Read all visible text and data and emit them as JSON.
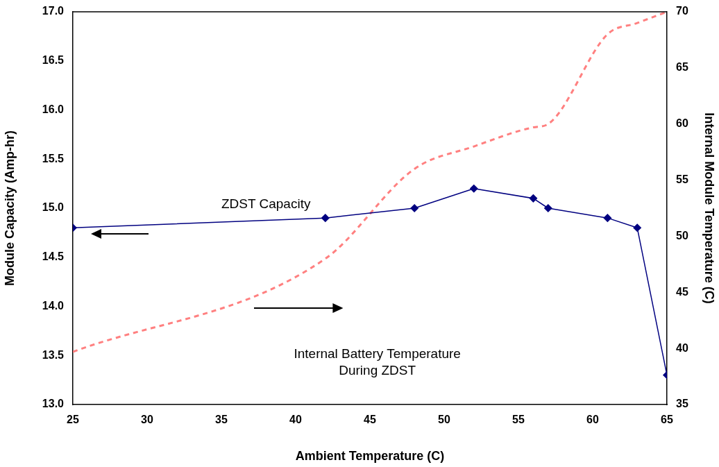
{
  "chart_data": {
    "type": "line",
    "xlabel": "Ambient Temperature (C)",
    "ylabel": "Module Capacity (Amp-hr)",
    "y2label": "Internal Module Temperature (C)",
    "x": [
      25,
      42,
      48,
      52,
      56,
      57,
      61,
      63,
      65
    ],
    "series": [
      {
        "color": "#000080",
        "values": [
          14.8,
          14.9,
          15.0,
          15.2,
          15.1,
          15.0,
          14.9,
          14.8,
          13.3
        ],
        "marker": "diamond",
        "line_style": "solid"
      },
      {
        "color": "#ff8080",
        "axis": "y2",
        "values": [
          39.7,
          48,
          56,
          58,
          59.7,
          60,
          68,
          69,
          70
        ],
        "marker": "none",
        "line_style": "dashed"
      }
    ],
    "xlim": [
      25,
      65
    ],
    "xticks": [
      25,
      30,
      35,
      40,
      45,
      50,
      55,
      60,
      65
    ],
    "ylim": [
      13,
      17
    ],
    "yticks": [
      {
        "value": 13,
        "label": "13.0"
      },
      {
        "value": 13.5,
        "label": "13.5"
      },
      {
        "value": 14,
        "label": "14.0"
      },
      {
        "value": 14.5,
        "label": "14.5"
      },
      {
        "value": 15,
        "label": "15.0"
      },
      {
        "value": 15.5,
        "label": "15.5"
      },
      {
        "value": 16,
        "label": "16.0"
      },
      {
        "value": 16.5,
        "label": "16.5"
      },
      {
        "value": 17,
        "label": "17.0"
      }
    ],
    "y2lim": [
      35,
      70
    ],
    "y2ticks": [
      35,
      40,
      45,
      50,
      55,
      60,
      65,
      70
    ],
    "annotations": [
      "ZDST Capacity",
      "Internal Battery Temperature\nDuring ZDST"
    ]
  }
}
